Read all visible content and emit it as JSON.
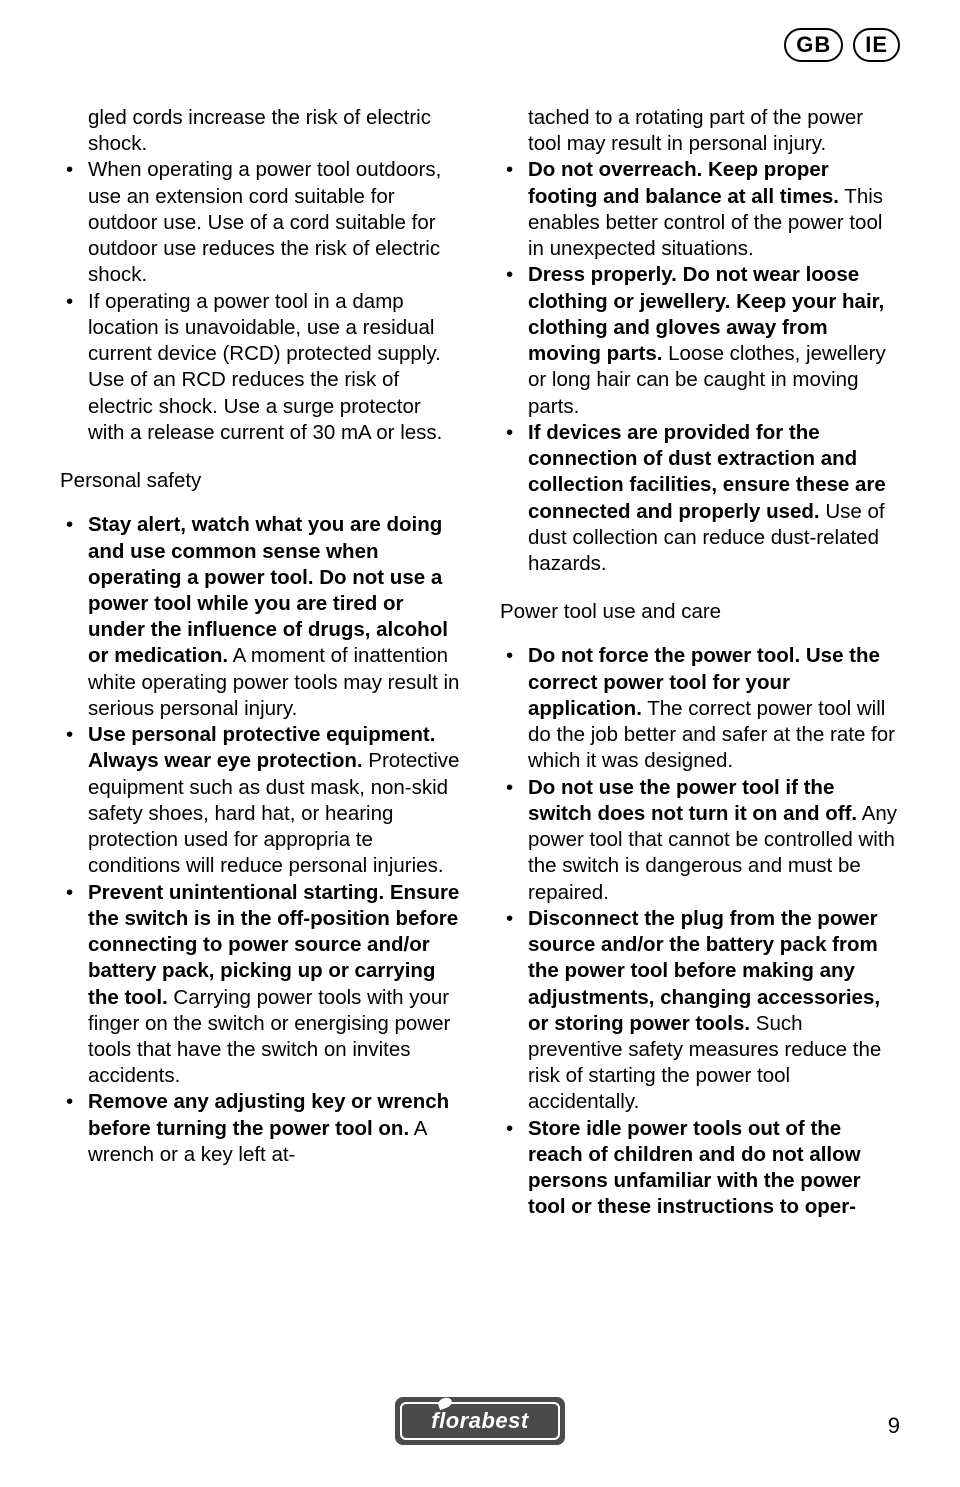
{
  "badges": {
    "gb": "GB",
    "ie": "IE"
  },
  "col1": {
    "cont1": "gled cords increase the risk of electric shock.",
    "b1": "When operating a power tool outdoors, use an extension cord suitable for outdoor use. Use of a cord suitable for outdoor use reduces the risk of electric shock.",
    "b2": "If operating a power tool in a damp location is unavoidable, use a residual current device (RCD) protected supply. Use of an RCD reduces the risk of electric shock. Use a surge protector with a release current of 30 mA or less.",
    "head1": "Personal safety",
    "p1_bold": "Stay alert, watch what you are doing and use common sense when operating a power tool. Do not use a power tool while you are tired or under the influence of drugs, alcohol or medication.",
    "p1_rest": " A moment of inattention white operating power tools may result in serious personal injury.",
    "p2_bold": "Use personal protective equipment. Always wear eye protection.",
    "p2_rest": " Protective equipment such as dust mask, non-skid safety shoes, hard hat, or hearing protection used for appropria te conditions will reduce personal injuries.",
    "p3_bold": "Prevent unintentional starting. Ensure the switch is in the off-position before connecting to power source and/or battery pack, picking up or carrying the tool.",
    "p3_rest": " Carrying power tools with your finger on the switch or energising power tools that have the switch on invites accidents.",
    "p4_bold": "Remove any adjusting key or wrench before turning the power tool on.",
    "p4_rest": " A wrench or a key left at-"
  },
  "col2": {
    "cont1": "tached to a rotating part of the power tool may result in personal injury.",
    "b1_bold": "Do not overreach. Keep proper footing and balance at all times.",
    "b1_rest": " This enables better control of the power tool in unexpected situations.",
    "b2_bold": "Dress properly. Do not wear loose clothing or jewellery. Keep your hair, clothing and gloves away from moving parts.",
    "b2_rest": " Loose clothes, jewellery or long hair can be caught in moving parts.",
    "b3_bold": "If devices are provided for the connection of dust extraction and collection facilities, ensure these are connected and properly used.",
    "b3_rest": " Use of dust collection can reduce dust-related hazards.",
    "head2": "Power tool use and care",
    "c1_bold": "Do not force the power tool. Use the correct power tool for your application.",
    "c1_rest": " The correct power tool will do the job better and safer at the rate for which it was designed.",
    "c2_bold": "Do not use the power tool if the switch does not turn it on and off.",
    "c2_rest": " Any power tool that cannot be controlled with the switch is dangerous and must be repaired.",
    "c3_bold": "Disconnect the plug from the power source and/or the battery pack from the power tool before making any adjustments, changing accessories, or storing power tools.",
    "c3_rest": " Such preventive safety measures reduce the risk of starting the power tool accidentally.",
    "c4_bold": "Store idle power tools out of the reach of children and do not allow persons unfamiliar with the power tool or these instructions to oper-"
  },
  "footer": {
    "brand": "florabest"
  },
  "page_number": "9"
}
